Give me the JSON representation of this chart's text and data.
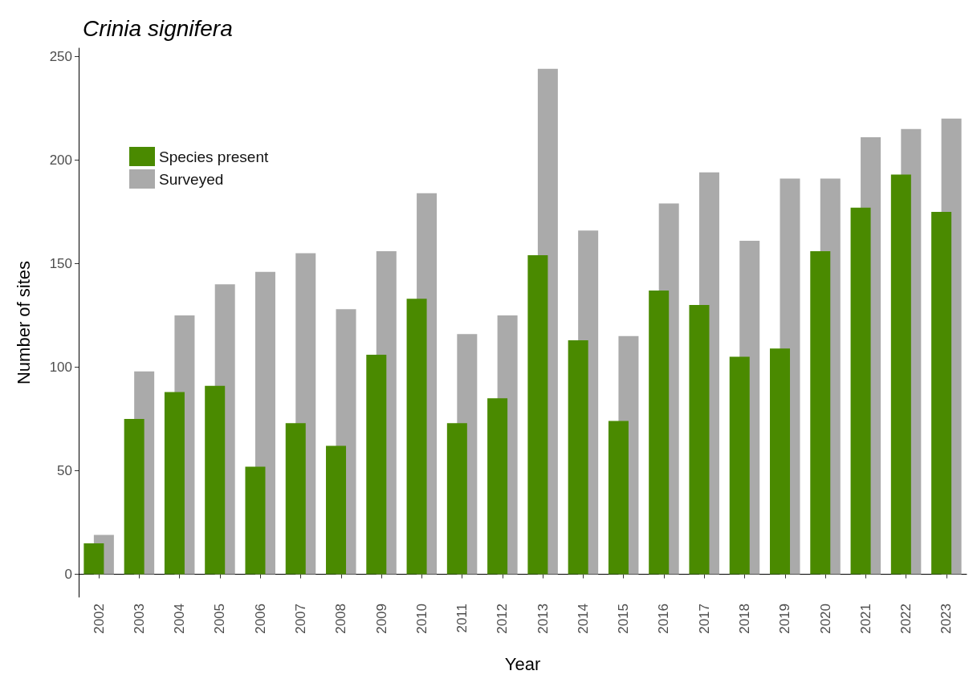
{
  "chart_data": {
    "type": "bar",
    "title": "Crinia signifera",
    "xlabel": "Year",
    "ylabel": "Number of sites",
    "categories": [
      "2002",
      "2003",
      "2004",
      "2005",
      "2006",
      "2007",
      "2008",
      "2009",
      "2010",
      "2011",
      "2012",
      "2013",
      "2014",
      "2015",
      "2016",
      "2017",
      "2018",
      "2019",
      "2020",
      "2021",
      "2022",
      "2023"
    ],
    "series": [
      {
        "name": "Species present",
        "color": "#4a8a00",
        "values": [
          15,
          75,
          88,
          91,
          52,
          73,
          62,
          106,
          133,
          73,
          85,
          154,
          113,
          74,
          137,
          130,
          105,
          109,
          156,
          177,
          193,
          175
        ]
      },
      {
        "name": "Surveyed",
        "color": "#aaaaaa",
        "values": [
          19,
          98,
          125,
          140,
          146,
          155,
          128,
          156,
          184,
          116,
          125,
          244,
          166,
          115,
          179,
          194,
          161,
          191,
          191,
          211,
          215,
          220
        ]
      }
    ],
    "ylim": [
      -11,
      254
    ],
    "yticks": [
      0,
      50,
      100,
      150,
      200,
      250
    ],
    "grid": false,
    "legend": "top left"
  }
}
